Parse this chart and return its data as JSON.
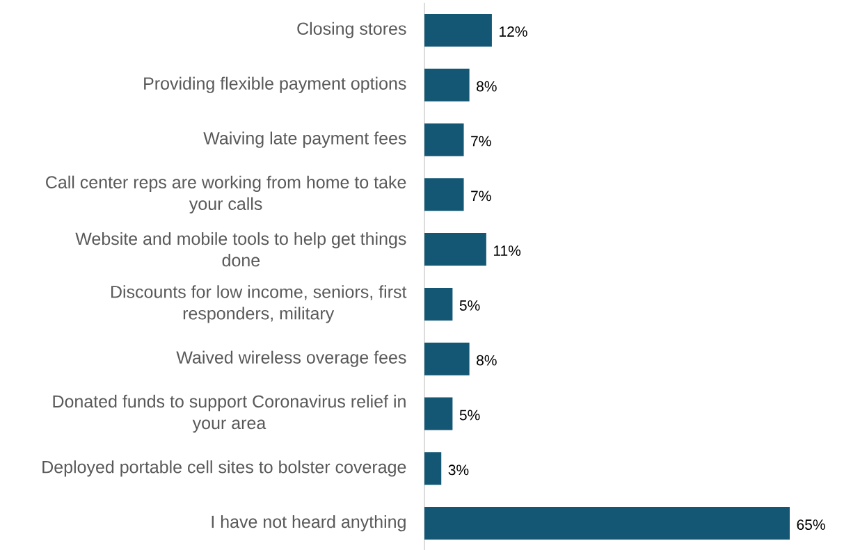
{
  "chart_data": {
    "type": "bar",
    "orientation": "horizontal",
    "categories": [
      "Closing stores",
      "Providing flexible payment options",
      "Waiving late payment fees",
      "Call center reps are working from home to take your calls",
      "Website and mobile tools to help get things done",
      "Discounts for low income, seniors, first responders, military",
      "Waived wireless overage fees",
      "Donated funds to support Coronavirus relief in your area",
      "Deployed portable cell sites to bolster coverage",
      "I have not heard anything"
    ],
    "values": [
      12,
      8,
      7,
      7,
      11,
      5,
      8,
      5,
      3,
      65
    ],
    "value_labels": [
      "12%",
      "8%",
      "7%",
      "7%",
      "11%",
      "5%",
      "8%",
      "5%",
      "3%",
      "65%"
    ],
    "color": "#135774"
  }
}
